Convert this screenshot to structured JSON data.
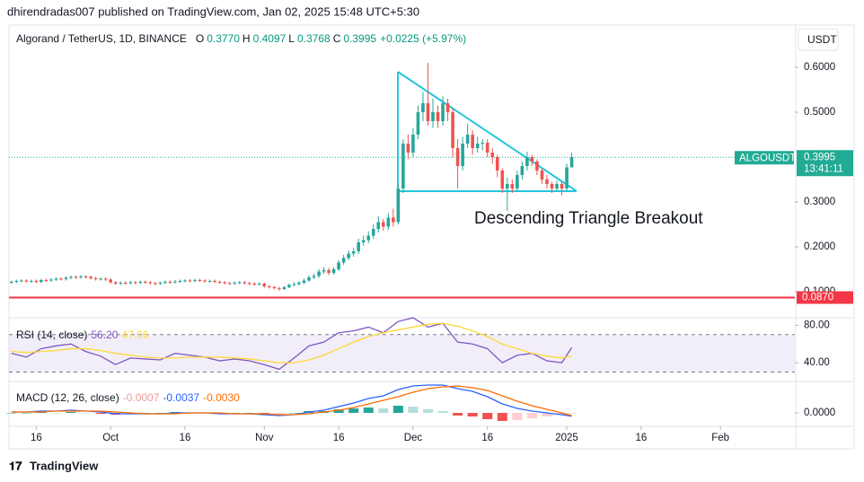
{
  "header": {
    "published": "dhirendradas007 published on TradingView.com, Jan 02, 2025 15:48 UTC+5:30",
    "currency": "USDT"
  },
  "footer": {
    "brand": "TradingView"
  },
  "chart_data": [
    {
      "type": "candlestick",
      "title": "Algorand / TetherUS, 1D, BINANCE",
      "legend": [
        {
          "label": "O",
          "value": "0.3770"
        },
        {
          "label": "H",
          "value": "0.4097"
        },
        {
          "label": "L",
          "value": "0.3768"
        },
        {
          "label": "C",
          "value": "0.3995"
        }
      ],
      "change": "+0.0225 (+5.97%)",
      "annotation": "Descending Triangle Breakout",
      "colors": {
        "up": "#26a69a",
        "down": "#ef5350"
      },
      "open": [
        0.121,
        0.122,
        0.124,
        0.125,
        0.123,
        0.124,
        0.122,
        0.126,
        0.125,
        0.127,
        0.129,
        0.128,
        0.131,
        0.133,
        0.132,
        0.134,
        0.133,
        0.13,
        0.128,
        0.129,
        0.127,
        0.121,
        0.118,
        0.12,
        0.119,
        0.121,
        0.12,
        0.122,
        0.121,
        0.119,
        0.118,
        0.12,
        0.122,
        0.121,
        0.123,
        0.124,
        0.125,
        0.124,
        0.126,
        0.125,
        0.123,
        0.124,
        0.122,
        0.121,
        0.119,
        0.118,
        0.12,
        0.121,
        0.119,
        0.118,
        0.117,
        0.118,
        0.112,
        0.11,
        0.108,
        0.106,
        0.11,
        0.115,
        0.117,
        0.12,
        0.125,
        0.132,
        0.135,
        0.145,
        0.148,
        0.142,
        0.15,
        0.165,
        0.175,
        0.185,
        0.19,
        0.21,
        0.215,
        0.225,
        0.24,
        0.255,
        0.245,
        0.265,
        0.255,
        0.33,
        0.43,
        0.41,
        0.45,
        0.5,
        0.52,
        0.48,
        0.5,
        0.48,
        0.52,
        0.5,
        0.42,
        0.38,
        0.43,
        0.45,
        0.42,
        0.43,
        0.432,
        0.41,
        0.4,
        0.37,
        0.33,
        0.34,
        0.33,
        0.36,
        0.38,
        0.4,
        0.39,
        0.37,
        0.35,
        0.34,
        0.33,
        0.34,
        0.33,
        0.377
      ],
      "high": [
        0.125,
        0.127,
        0.128,
        0.128,
        0.127,
        0.127,
        0.129,
        0.129,
        0.13,
        0.132,
        0.132,
        0.134,
        0.136,
        0.136,
        0.137,
        0.137,
        0.136,
        0.133,
        0.132,
        0.132,
        0.13,
        0.124,
        0.123,
        0.123,
        0.124,
        0.124,
        0.125,
        0.125,
        0.124,
        0.122,
        0.123,
        0.125,
        0.125,
        0.126,
        0.127,
        0.128,
        0.128,
        0.129,
        0.129,
        0.128,
        0.127,
        0.127,
        0.125,
        0.124,
        0.122,
        0.123,
        0.124,
        0.124,
        0.122,
        0.121,
        0.121,
        0.12,
        0.115,
        0.113,
        0.111,
        0.113,
        0.118,
        0.121,
        0.124,
        0.129,
        0.137,
        0.14,
        0.15,
        0.155,
        0.153,
        0.155,
        0.17,
        0.182,
        0.192,
        0.198,
        0.218,
        0.225,
        0.235,
        0.25,
        0.268,
        0.262,
        0.275,
        0.285,
        0.34,
        0.44,
        0.45,
        0.465,
        0.515,
        0.545,
        0.61,
        0.53,
        0.515,
        0.535,
        0.53,
        0.51,
        0.44,
        0.445,
        0.475,
        0.46,
        0.445,
        0.44,
        0.44,
        0.42,
        0.405,
        0.375,
        0.355,
        0.35,
        0.37,
        0.39,
        0.412,
        0.405,
        0.395,
        0.375,
        0.36,
        0.345,
        0.348,
        0.345,
        0.385,
        0.4097
      ],
      "low": [
        0.118,
        0.119,
        0.121,
        0.12,
        0.12,
        0.119,
        0.119,
        0.122,
        0.122,
        0.124,
        0.125,
        0.125,
        0.128,
        0.129,
        0.129,
        0.13,
        0.127,
        0.125,
        0.125,
        0.124,
        0.118,
        0.115,
        0.115,
        0.116,
        0.116,
        0.117,
        0.117,
        0.118,
        0.116,
        0.115,
        0.115,
        0.117,
        0.118,
        0.118,
        0.12,
        0.121,
        0.121,
        0.121,
        0.122,
        0.12,
        0.12,
        0.119,
        0.118,
        0.116,
        0.115,
        0.115,
        0.117,
        0.116,
        0.115,
        0.114,
        0.114,
        0.109,
        0.107,
        0.105,
        0.102,
        0.104,
        0.108,
        0.112,
        0.114,
        0.117,
        0.122,
        0.128,
        0.131,
        0.14,
        0.137,
        0.138,
        0.146,
        0.16,
        0.17,
        0.178,
        0.184,
        0.202,
        0.208,
        0.218,
        0.232,
        0.236,
        0.238,
        0.245,
        0.25,
        0.32,
        0.395,
        0.4,
        0.44,
        0.48,
        0.47,
        0.465,
        0.465,
        0.47,
        0.48,
        0.4,
        0.33,
        0.37,
        0.42,
        0.405,
        0.41,
        0.415,
        0.4,
        0.385,
        0.355,
        0.32,
        0.28,
        0.32,
        0.325,
        0.35,
        0.37,
        0.38,
        0.36,
        0.34,
        0.33,
        0.32,
        0.325,
        0.315,
        0.325,
        0.3768
      ],
      "close": [
        0.122,
        0.124,
        0.125,
        0.123,
        0.124,
        0.122,
        0.126,
        0.125,
        0.127,
        0.129,
        0.128,
        0.131,
        0.133,
        0.132,
        0.134,
        0.133,
        0.13,
        0.128,
        0.129,
        0.127,
        0.121,
        0.118,
        0.12,
        0.119,
        0.121,
        0.12,
        0.122,
        0.121,
        0.119,
        0.118,
        0.12,
        0.122,
        0.121,
        0.123,
        0.124,
        0.125,
        0.124,
        0.126,
        0.125,
        0.123,
        0.124,
        0.122,
        0.121,
        0.119,
        0.118,
        0.12,
        0.121,
        0.119,
        0.118,
        0.117,
        0.118,
        0.112,
        0.11,
        0.108,
        0.106,
        0.11,
        0.115,
        0.117,
        0.12,
        0.125,
        0.132,
        0.135,
        0.145,
        0.148,
        0.142,
        0.15,
        0.165,
        0.175,
        0.185,
        0.19,
        0.21,
        0.215,
        0.225,
        0.24,
        0.255,
        0.245,
        0.265,
        0.255,
        0.33,
        0.43,
        0.41,
        0.45,
        0.5,
        0.52,
        0.48,
        0.5,
        0.48,
        0.52,
        0.5,
        0.42,
        0.38,
        0.43,
        0.45,
        0.42,
        0.43,
        0.432,
        0.41,
        0.4,
        0.37,
        0.33,
        0.34,
        0.33,
        0.36,
        0.38,
        0.4,
        0.39,
        0.37,
        0.35,
        0.34,
        0.33,
        0.34,
        0.33,
        0.377,
        0.3995
      ],
      "last_price": {
        "symbol": "ALGOUSDT",
        "value": 0.3995,
        "label": "0.3995",
        "countdown": "13:41:11",
        "color": "#22ab94"
      },
      "hline": {
        "value": 0.087,
        "label": "0.0870",
        "color": "#f23645"
      },
      "xlim": [
        -0.5,
        158
      ],
      "xticks": [
        {
          "value": 5,
          "label": "16"
        },
        {
          "value": 20,
          "label": "Oct"
        },
        {
          "value": 35,
          "label": "16"
        },
        {
          "value": 51,
          "label": "Nov"
        },
        {
          "value": 66,
          "label": "16"
        },
        {
          "value": 81,
          "label": "Dec"
        },
        {
          "value": 96,
          "label": "16"
        },
        {
          "value": 112,
          "label": "2025"
        },
        {
          "value": 127,
          "label": "16"
        },
        {
          "value": 143,
          "label": "Feb"
        }
      ],
      "ylim": [
        0.046,
        0.694
      ],
      "yticks": [
        {
          "value": 0.1,
          "label": "0.1000"
        },
        {
          "value": 0.2,
          "label": "0.2000"
        },
        {
          "value": 0.3,
          "label": "0.3000"
        },
        {
          "value": 0.5,
          "label": "0.5000"
        },
        {
          "value": 0.6,
          "label": "0.6000"
        }
      ]
    },
    {
      "type": "line",
      "title": "RSI (14, close)",
      "x": [
        0,
        3,
        6,
        9,
        12,
        15,
        18,
        21,
        24,
        27,
        30,
        33,
        36,
        39,
        42,
        45,
        48,
        51,
        54,
        57,
        60,
        63,
        66,
        69,
        72,
        75,
        78,
        81,
        84,
        87,
        90,
        93,
        96,
        99,
        102,
        105,
        108,
        111,
        113
      ],
      "series": [
        {
          "color": "#7e57c2",
          "value_label": "56.20",
          "values": [
            50,
            46,
            55,
            58,
            60,
            52,
            47,
            38,
            45,
            44,
            43,
            50,
            48,
            46,
            42,
            44,
            42,
            38,
            33,
            45,
            58,
            62,
            72,
            74,
            78,
            72,
            84,
            88,
            78,
            82,
            62,
            60,
            55,
            40,
            48,
            50,
            42,
            40,
            56.2
          ]
        },
        {
          "color": "#fdd835",
          "value_label": "47.06",
          "values": [
            52,
            51,
            52,
            53,
            55,
            55,
            53,
            50,
            48,
            46,
            45,
            45,
            46,
            46,
            46,
            45,
            44,
            42,
            40,
            40,
            43,
            48,
            55,
            62,
            68,
            72,
            75,
            78,
            81,
            82,
            79,
            74,
            68,
            60,
            55,
            50,
            47,
            45,
            47.06
          ]
        }
      ],
      "band": [
        30,
        70
      ],
      "xlim": [
        -0.5,
        158
      ],
      "ylim": [
        20,
        88
      ],
      "yticks": [
        {
          "value": 40,
          "label": "40.00"
        },
        {
          "value": 80,
          "label": "80.00"
        }
      ]
    },
    {
      "type": "macd",
      "title": "MACD (12, 26, close)",
      "x": [
        0,
        3,
        6,
        9,
        12,
        15,
        18,
        21,
        24,
        27,
        30,
        33,
        36,
        39,
        42,
        45,
        48,
        51,
        54,
        57,
        60,
        63,
        66,
        69,
        72,
        75,
        78,
        81,
        84,
        87,
        90,
        93,
        96,
        99,
        102,
        105,
        108,
        111,
        113
      ],
      "histogram": {
        "value_label": "-0.0007",
        "colors": [
          "#26a69a",
          "#b2dfdb",
          "#ffcdd2",
          "#ef5350"
        ],
        "values": [
          0,
          0,
          0.001,
          0,
          0.001,
          0,
          -0.001,
          -0.002,
          -0.001,
          0,
          0,
          0.001,
          0,
          0,
          -0.001,
          0,
          0,
          -0.001,
          -0.001,
          0,
          0.002,
          0.002,
          0.004,
          0.005,
          0.006,
          0.005,
          0.008,
          0.007,
          0.004,
          0.002,
          -0.003,
          -0.004,
          -0.007,
          -0.009,
          -0.008,
          -0.006,
          -0.004,
          -0.002,
          -0.0007
        ]
      },
      "series": [
        {
          "color": "#2962ff",
          "value_label": "-0.0037",
          "values": [
            0.001,
            0.001,
            0.002,
            0.002,
            0.003,
            0.002,
            0.001,
            -0.001,
            -0.001,
            -0.001,
            -0.001,
            0,
            0,
            0,
            -0.001,
            -0.001,
            -0.001,
            -0.002,
            -0.003,
            -0.002,
            0.001,
            0.003,
            0.007,
            0.011,
            0.016,
            0.019,
            0.026,
            0.03,
            0.031,
            0.031,
            0.027,
            0.024,
            0.018,
            0.01,
            0.005,
            0.002,
            0,
            -0.002,
            -0.0037
          ]
        },
        {
          "color": "#ff6d00",
          "value_label": "-0.0030",
          "values": [
            0.001,
            0.001,
            0.001,
            0.002,
            0.002,
            0.002,
            0.002,
            0.001,
            0,
            -0.001,
            -0.001,
            -0.001,
            0,
            0,
            0,
            -0.001,
            -0.001,
            -0.001,
            -0.002,
            -0.002,
            -0.001,
            0.001,
            0.003,
            0.006,
            0.01,
            0.014,
            0.018,
            0.023,
            0.027,
            0.029,
            0.03,
            0.028,
            0.025,
            0.019,
            0.013,
            0.008,
            0.004,
            0,
            -0.003
          ]
        }
      ],
      "xlim": [
        -0.5,
        158
      ],
      "ylim": [
        -0.015,
        0.035
      ],
      "yticks": [
        {
          "value": 0,
          "label": "0.0000"
        }
      ]
    }
  ]
}
